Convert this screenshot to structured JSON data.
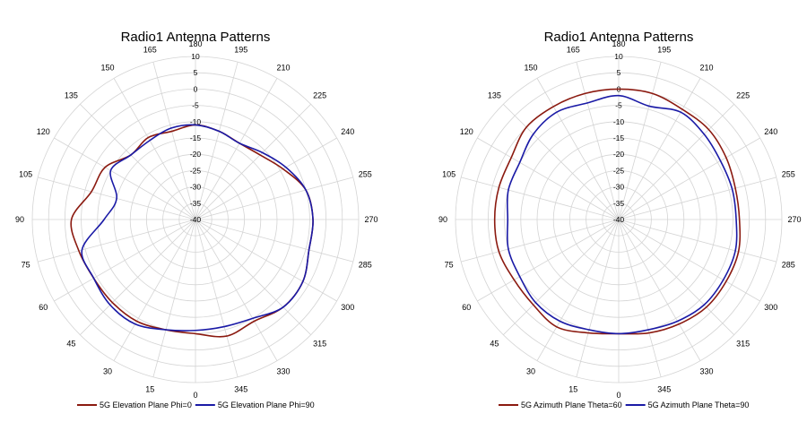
{
  "chart_data": [
    {
      "type": "polar",
      "title": "Radio1 Antenna Patterns",
      "radial_ticks": [
        10,
        5,
        0,
        -5,
        -10,
        -15,
        -20,
        -25,
        -30,
        -35,
        -40
      ],
      "rlim": [
        -40,
        10
      ],
      "angle_ticks": [
        0,
        15,
        30,
        45,
        60,
        75,
        90,
        105,
        120,
        135,
        150,
        165,
        180,
        195,
        210,
        225,
        240,
        255,
        270,
        285,
        300,
        315,
        330,
        345
      ],
      "angle_zero": "bottom",
      "angle_direction": "clockwise-from-bottom-via-left",
      "grid": true,
      "legend": "bottom",
      "series": [
        {
          "name": "5G Elevation Plane Phi=0",
          "color": "#8B1A10",
          "theta": [
            0,
            15,
            30,
            45,
            60,
            75,
            90,
            105,
            120,
            135,
            150,
            165,
            180,
            195,
            210,
            225,
            240,
            255,
            270,
            285,
            300,
            315,
            330,
            345
          ],
          "r": [
            -5,
            -5,
            -4,
            -4,
            -4,
            -3,
            -2,
            -7,
            -8,
            -12,
            -11,
            -12,
            -11,
            -12,
            -13,
            -12,
            -9,
            -5,
            -4,
            -4,
            -2,
            -2,
            -4,
            -3
          ]
        },
        {
          "name": "5G Elevation Plane Phi=90",
          "color": "#1A1AA6",
          "theta": [
            0,
            15,
            30,
            45,
            60,
            75,
            90,
            105,
            120,
            135,
            150,
            165,
            180,
            195,
            210,
            225,
            240,
            255,
            270,
            285,
            300,
            315,
            330,
            345
          ],
          "r": [
            -6,
            -5,
            -3,
            -3,
            -4,
            -4,
            -12,
            -15,
            -10,
            -12,
            -12,
            -11,
            -11,
            -12,
            -13,
            -11,
            -8,
            -5,
            -4,
            -4,
            -2,
            -2,
            -5,
            -6
          ]
        }
      ]
    },
    {
      "type": "polar",
      "title": "Radio1 Antenna Patterns",
      "radial_ticks": [
        10,
        5,
        0,
        -5,
        -10,
        -15,
        -20,
        -25,
        -30,
        -35,
        -40
      ],
      "rlim": [
        -40,
        10
      ],
      "angle_ticks": [
        0,
        15,
        30,
        45,
        60,
        75,
        90,
        105,
        120,
        135,
        150,
        165,
        180,
        195,
        210,
        225,
        240,
        255,
        270,
        285,
        300,
        315,
        330,
        345
      ],
      "angle_zero": "bottom",
      "angle_direction": "clockwise-from-bottom-via-left",
      "grid": true,
      "legend": "bottom",
      "series": [
        {
          "name": "5G Azimuth Plane Theta=60",
          "color": "#8B1A10",
          "theta": [
            0,
            15,
            30,
            45,
            60,
            75,
            90,
            105,
            120,
            135,
            150,
            165,
            180,
            195,
            210,
            225,
            240,
            255,
            270,
            285,
            300,
            315,
            330,
            345
          ],
          "r": [
            -5,
            -4,
            -2,
            -3,
            -3,
            -2,
            -2,
            -2,
            -2,
            0,
            0,
            0,
            0,
            0,
            -1,
            -1,
            -2,
            -3,
            -3,
            -2,
            -2,
            -2,
            -3,
            -4
          ]
        },
        {
          "name": "5G Azimuth Plane Theta=90",
          "color": "#1A1AA6",
          "theta": [
            0,
            15,
            30,
            45,
            60,
            75,
            90,
            105,
            120,
            135,
            150,
            165,
            180,
            195,
            210,
            225,
            240,
            255,
            270,
            285,
            300,
            315,
            330,
            345
          ],
          "r": [
            -5,
            -5,
            -4,
            -4,
            -5,
            -5,
            -6,
            -5,
            -5,
            -3,
            -2,
            -3,
            -2,
            -4,
            -2,
            -3,
            -4,
            -4,
            -4,
            -3,
            -3,
            -3,
            -4,
            -5
          ]
        }
      ]
    }
  ]
}
